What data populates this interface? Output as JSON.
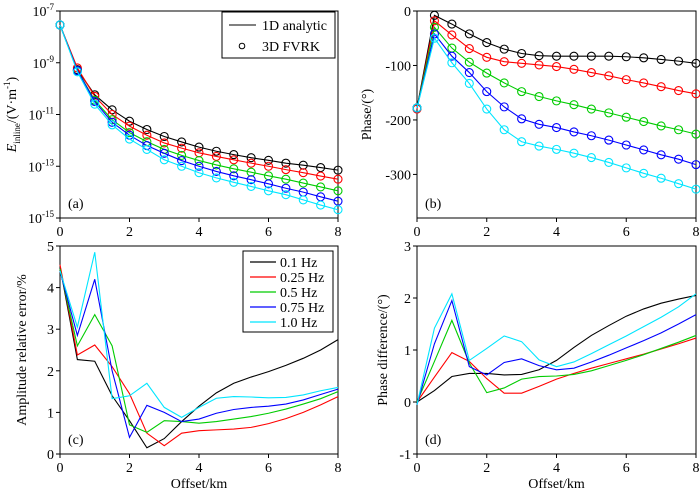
{
  "figure": {
    "colors": {
      "0.1 Hz": "#000000",
      "0.25 Hz": "#ff0000",
      "0.5 Hz": "#00cc00",
      "0.75 Hz": "#0000ff",
      "1.0 Hz": "#00e5ff"
    }
  },
  "chart_data": [
    {
      "id": "a",
      "type": "line",
      "panel_label": "(a)",
      "title": "",
      "xlabel": "",
      "ylabel_main": "E",
      "ylabel_sub": "inline",
      "ylabel_rest": "/(V·m",
      "ylabel_sup": "-1",
      "ylabel_end": ")",
      "yscale": "log",
      "xlim": [
        0,
        8
      ],
      "ylim_log10": [
        -15,
        -7
      ],
      "xticks": [
        0,
        2,
        4,
        6,
        8
      ],
      "yticks_log10": [
        -7,
        -9,
        -11,
        -13,
        -15
      ],
      "ytick_labels": [
        {
          "base": "10",
          "exp": "-7"
        },
        {
          "base": "10",
          "exp": "-9"
        },
        {
          "base": "10",
          "exp": "-11"
        },
        {
          "base": "10",
          "exp": "-13"
        },
        {
          "base": "10",
          "exp": "-15"
        }
      ],
      "markers": true,
      "legend": {
        "position": "top-right",
        "entries": [
          {
            "label": "1D analytic",
            "style": "line"
          },
          {
            "label": "3D FVRK",
            "style": "circle"
          }
        ]
      },
      "x": [
        0,
        0.5,
        1,
        1.5,
        2,
        2.5,
        3,
        3.5,
        4,
        4.5,
        5,
        5.5,
        6,
        6.5,
        7,
        7.5,
        8
      ],
      "series_note": "values are log10(E_inline in V/m)",
      "series": [
        {
          "name": "0.1 Hz",
          "values": [
            -7.54,
            -9.27,
            -10.24,
            -10.82,
            -11.26,
            -11.58,
            -11.85,
            -12.06,
            -12.26,
            -12.42,
            -12.55,
            -12.67,
            -12.77,
            -12.88,
            -12.96,
            -13.05,
            -13.15
          ]
        },
        {
          "name": "0.25 Hz",
          "values": [
            -7.54,
            -9.2,
            -10.3,
            -11.0,
            -11.45,
            -11.8,
            -12.1,
            -12.3,
            -12.48,
            -12.62,
            -12.75,
            -12.88,
            -13.0,
            -13.13,
            -13.25,
            -13.38,
            -13.5
          ]
        },
        {
          "name": "0.5 Hz",
          "values": [
            -7.54,
            -9.3,
            -10.45,
            -11.2,
            -11.7,
            -12.05,
            -12.35,
            -12.58,
            -12.78,
            -12.95,
            -13.1,
            -13.23,
            -13.37,
            -13.5,
            -13.65,
            -13.8,
            -13.95
          ]
        },
        {
          "name": "0.75 Hz",
          "values": [
            -7.54,
            -9.3,
            -10.5,
            -11.3,
            -11.8,
            -12.2,
            -12.5,
            -12.78,
            -13.0,
            -13.2,
            -13.37,
            -13.52,
            -13.68,
            -13.85,
            -14.0,
            -14.18,
            -14.35
          ]
        },
        {
          "name": "1.0 Hz",
          "values": [
            -7.54,
            -9.35,
            -10.6,
            -11.4,
            -11.95,
            -12.35,
            -12.75,
            -13.0,
            -13.25,
            -13.45,
            -13.62,
            -13.78,
            -13.95,
            -14.1,
            -14.3,
            -14.5,
            -14.68
          ]
        }
      ]
    },
    {
      "id": "b",
      "type": "line",
      "panel_label": "(b)",
      "title": "",
      "xlabel": "",
      "ylabel": "Phase/(°)",
      "yscale": "linear",
      "xlim": [
        0,
        8
      ],
      "ylim": [
        -380,
        0
      ],
      "xticks": [
        0,
        2,
        4,
        6,
        8
      ],
      "yticks": [
        0,
        -100,
        -200,
        -300
      ],
      "markers": true,
      "x": [
        0,
        0.5,
        1,
        1.5,
        2,
        2.5,
        3,
        3.5,
        4,
        4.5,
        5,
        5.5,
        6,
        6.5,
        7,
        7.5,
        8
      ],
      "series": [
        {
          "name": "0.1 Hz",
          "values": [
            -178,
            -8,
            -24,
            -42,
            -58,
            -70,
            -78,
            -82,
            -83,
            -83,
            -83,
            -83,
            -84,
            -86,
            -89,
            -92,
            -96
          ]
        },
        {
          "name": "0.25 Hz",
          "values": [
            -180,
            -18,
            -44,
            -69,
            -85,
            -93,
            -96,
            -99,
            -102,
            -107,
            -113,
            -119,
            -126,
            -132,
            -139,
            -146,
            -152
          ]
        },
        {
          "name": "0.5 Hz",
          "values": [
            -178,
            -30,
            -68,
            -94,
            -114,
            -132,
            -148,
            -157,
            -165,
            -172,
            -180,
            -187,
            -195,
            -203,
            -211,
            -218,
            -226
          ]
        },
        {
          "name": "0.75 Hz",
          "values": [
            -178,
            -42,
            -83,
            -113,
            -148,
            -176,
            -198,
            -208,
            -214,
            -222,
            -229,
            -237,
            -246,
            -255,
            -264,
            -272,
            -282
          ]
        },
        {
          "name": "1.0 Hz",
          "values": [
            -178,
            -50,
            -95,
            -133,
            -180,
            -218,
            -240,
            -248,
            -254,
            -261,
            -269,
            -278,
            -288,
            -298,
            -307,
            -317,
            -327
          ]
        }
      ]
    },
    {
      "id": "c",
      "type": "line",
      "panel_label": "(c)",
      "title": "",
      "xlabel": "Offset/km",
      "ylabel": "Amplitude relative error/%",
      "yscale": "linear",
      "xlim": [
        0,
        8
      ],
      "ylim": [
        0,
        5
      ],
      "xticks": [
        0,
        2,
        4,
        6,
        8
      ],
      "yticks": [
        0,
        1,
        2,
        3,
        4,
        5
      ],
      "markers": false,
      "legend": {
        "position": "top-right",
        "entries": [
          {
            "label": "0.1 Hz"
          },
          {
            "label": "0.25 Hz"
          },
          {
            "label": "0.5 Hz"
          },
          {
            "label": "0.75 Hz"
          },
          {
            "label": "1.0 Hz"
          }
        ]
      },
      "x": [
        0,
        0.5,
        1,
        1.5,
        2,
        2.5,
        3,
        3.5,
        4,
        4.5,
        5,
        5.5,
        6,
        6.5,
        7,
        7.5,
        8
      ],
      "series": [
        {
          "name": "0.1 Hz",
          "values": [
            4.5,
            2.27,
            2.23,
            1.4,
            0.8,
            0.15,
            0.37,
            0.78,
            1.15,
            1.47,
            1.7,
            1.85,
            1.98,
            2.13,
            2.3,
            2.5,
            2.75
          ]
        },
        {
          "name": "0.25 Hz",
          "values": [
            4.55,
            2.38,
            2.62,
            2.1,
            1.45,
            0.5,
            0.2,
            0.5,
            0.56,
            0.58,
            0.6,
            0.64,
            0.73,
            0.85,
            1.0,
            1.18,
            1.38
          ]
        },
        {
          "name": "0.5 Hz",
          "values": [
            4.45,
            2.6,
            3.35,
            2.6,
            0.7,
            0.52,
            0.8,
            0.78,
            0.74,
            0.78,
            0.84,
            0.9,
            0.98,
            1.08,
            1.2,
            1.33,
            1.5
          ]
        },
        {
          "name": "0.75 Hz",
          "values": [
            4.4,
            2.85,
            4.2,
            2.0,
            0.4,
            1.17,
            1.0,
            0.78,
            0.84,
            0.98,
            1.07,
            1.12,
            1.15,
            1.2,
            1.3,
            1.43,
            1.56
          ]
        },
        {
          "name": "1.0 Hz",
          "values": [
            4.4,
            3.05,
            4.85,
            1.33,
            1.4,
            1.7,
            1.12,
            0.88,
            1.12,
            1.34,
            1.38,
            1.37,
            1.35,
            1.36,
            1.42,
            1.52,
            1.6
          ]
        }
      ]
    },
    {
      "id": "d",
      "type": "line",
      "panel_label": "(d)",
      "title": "",
      "xlabel": "Offset/km",
      "ylabel": "Phase difference/(°)",
      "yscale": "linear",
      "xlim": [
        0,
        8
      ],
      "ylim": [
        -1,
        3
      ],
      "xticks": [
        0,
        2,
        4,
        6,
        8
      ],
      "yticks": [
        -1,
        0,
        1,
        2,
        3
      ],
      "markers": false,
      "x": [
        0,
        0.5,
        1,
        1.5,
        2,
        2.5,
        3,
        3.5,
        4,
        4.5,
        5,
        5.5,
        6,
        6.5,
        7,
        7.5,
        8
      ],
      "series": [
        {
          "name": "0.1 Hz",
          "values": [
            0,
            0.22,
            0.49,
            0.55,
            0.55,
            0.52,
            0.53,
            0.62,
            0.8,
            1.05,
            1.28,
            1.47,
            1.65,
            1.79,
            1.9,
            1.98,
            2.05
          ]
        },
        {
          "name": "0.25 Hz",
          "values": [
            0,
            0.48,
            0.95,
            0.78,
            0.45,
            0.17,
            0.17,
            0.3,
            0.44,
            0.55,
            0.65,
            0.74,
            0.83,
            0.92,
            1.02,
            1.12,
            1.23
          ]
        },
        {
          "name": "0.5 Hz",
          "values": [
            0,
            0.78,
            1.57,
            0.75,
            0.18,
            0.27,
            0.44,
            0.49,
            0.5,
            0.53,
            0.6,
            0.7,
            0.8,
            0.91,
            1.03,
            1.15,
            1.28
          ]
        },
        {
          "name": "0.75 Hz",
          "values": [
            -0.05,
            1.12,
            1.95,
            0.68,
            0.52,
            0.76,
            0.83,
            0.7,
            0.62,
            0.65,
            0.77,
            0.9,
            1.04,
            1.18,
            1.33,
            1.5,
            1.68
          ]
        },
        {
          "name": "1.0 Hz",
          "values": [
            -0.05,
            1.42,
            2.08,
            0.8,
            1.03,
            1.27,
            1.16,
            0.81,
            0.68,
            0.77,
            0.93,
            1.1,
            1.27,
            1.45,
            1.63,
            1.83,
            2.08
          ]
        }
      ]
    }
  ]
}
